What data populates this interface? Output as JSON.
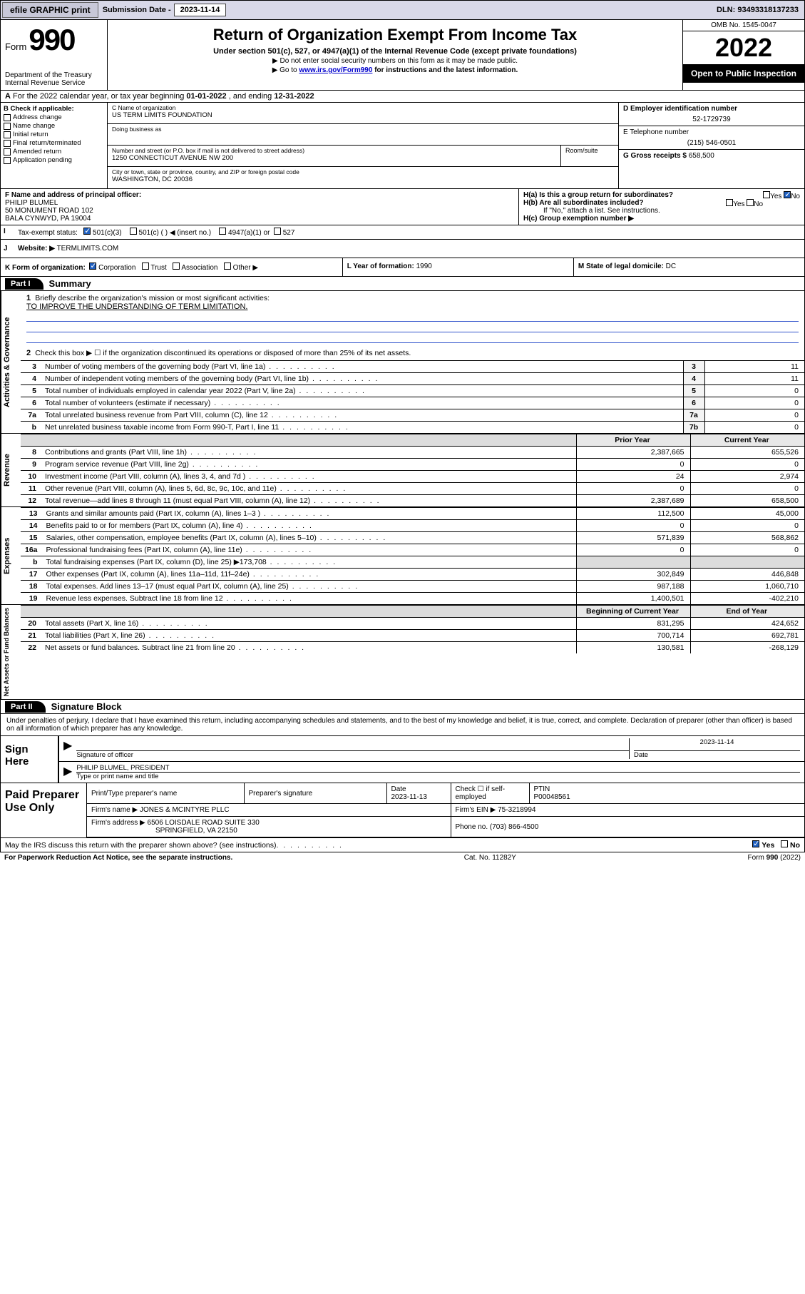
{
  "topbar": {
    "efile_btn": "efile GRAPHIC print",
    "sub_label": "Submission Date - ",
    "sub_date": "2023-11-14",
    "dln": "DLN: 93493318137233"
  },
  "header": {
    "form_word": "Form",
    "form_number": "990",
    "dept": "Department of the Treasury\nInternal Revenue Service",
    "title": "Return of Organization Exempt From Income Tax",
    "subtitle": "Under section 501(c), 527, or 4947(a)(1) of the Internal Revenue Code (except private foundations)",
    "note1": "▶ Do not enter social security numbers on this form as it may be made public.",
    "note2_pre": "▶ Go to ",
    "note2_link": "www.irs.gov/Form990",
    "note2_post": " for instructions and the latest information.",
    "omb": "OMB No. 1545-0047",
    "year": "2022",
    "open_public": "Open to Public Inspection"
  },
  "rowA": {
    "label": "A",
    "text_pre": "For the 2022 calendar year, or tax year beginning ",
    "begin": "01-01-2022",
    "mid": " , and ending ",
    "end": "12-31-2022"
  },
  "colB": {
    "label": "B Check if applicable:",
    "opts": [
      "Address change",
      "Name change",
      "Initial return",
      "Final return/terminated",
      "Amended return",
      "Application pending"
    ]
  },
  "colC": {
    "name_label": "C Name of organization",
    "name": "US TERM LIMITS FOUNDATION",
    "dba_label": "Doing business as",
    "dba": "",
    "street_label": "Number and street (or P.O. box if mail is not delivered to street address)",
    "street": "1250 CONNECTICUT AVENUE NW 200",
    "suite_label": "Room/suite",
    "city_label": "City or town, state or province, country, and ZIP or foreign postal code",
    "city": "WASHINGTON, DC  20036"
  },
  "colD": {
    "ein_label": "D Employer identification number",
    "ein": "52-1729739",
    "phone_label": "E Telephone number",
    "phone": "(215) 546-0501",
    "gross_label": "G Gross receipts $ ",
    "gross": "658,500"
  },
  "rowF": {
    "label": "F  Name and address of principal officer:",
    "name": "PHILIP BLUMEL",
    "addr1": "50 MONUMENT ROAD 102",
    "addr2": "BALA CYNWYD, PA  19004"
  },
  "rowH": {
    "ha": "H(a)  Is this a group return for subordinates?",
    "hb": "H(b)  Are all subordinates included?",
    "hb_note": "If \"No,\" attach a list. See instructions.",
    "hc": "H(c)  Group exemption number ▶",
    "yes": "Yes",
    "no": "No"
  },
  "rowI": {
    "label": "I",
    "text": "Tax-exempt status:",
    "opts": [
      "501(c)(3)",
      "501(c) (  ) ◀ (insert no.)",
      "4947(a)(1) or",
      "527"
    ]
  },
  "rowJ": {
    "label": "J",
    "text": "Website: ▶",
    "val": "TERMLIMITS.COM"
  },
  "rowK": {
    "k": "K Form of organization:",
    "k_opts": [
      "Corporation",
      "Trust",
      "Association",
      "Other ▶"
    ],
    "l": "L Year of formation: ",
    "l_val": "1990",
    "m": "M State of legal domicile: ",
    "m_val": "DC"
  },
  "part1": {
    "hdr": "Part I",
    "title": "Summary",
    "q1_label": "1",
    "q1": "Briefly describe the organization's mission or most significant activities:",
    "q1_val": "TO IMPROVE THE UNDERSTANDING OF TERM LIMITATION.",
    "q2_label": "2",
    "q2": "Check this box ▶ ☐  if the organization discontinued its operations or disposed of more than 25% of its net assets.",
    "vtab_gov": "Activities & Governance",
    "vtab_rev": "Revenue",
    "vtab_exp": "Expenses",
    "vtab_net": "Net Assets or Fund Balances",
    "rows_gov": [
      {
        "n": "3",
        "t": "Number of voting members of the governing body (Part VI, line 1a)",
        "box": "3",
        "v": "11"
      },
      {
        "n": "4",
        "t": "Number of independent voting members of the governing body (Part VI, line 1b)",
        "box": "4",
        "v": "11"
      },
      {
        "n": "5",
        "t": "Total number of individuals employed in calendar year 2022 (Part V, line 2a)",
        "box": "5",
        "v": "0"
      },
      {
        "n": "6",
        "t": "Total number of volunteers (estimate if necessary)",
        "box": "6",
        "v": "0"
      },
      {
        "n": "7a",
        "t": "Total unrelated business revenue from Part VIII, column (C), line 12",
        "box": "7a",
        "v": "0"
      },
      {
        "n": "b",
        "t": "Net unrelated business taxable income from Form 990-T, Part I, line 11",
        "box": "7b",
        "v": "0"
      }
    ],
    "hdr_prior": "Prior Year",
    "hdr_curr": "Current Year",
    "rows_rev": [
      {
        "n": "8",
        "t": "Contributions and grants (Part VIII, line 1h)",
        "p": "2,387,665",
        "c": "655,526"
      },
      {
        "n": "9",
        "t": "Program service revenue (Part VIII, line 2g)",
        "p": "0",
        "c": "0"
      },
      {
        "n": "10",
        "t": "Investment income (Part VIII, column (A), lines 3, 4, and 7d )",
        "p": "24",
        "c": "2,974"
      },
      {
        "n": "11",
        "t": "Other revenue (Part VIII, column (A), lines 5, 6d, 8c, 9c, 10c, and 11e)",
        "p": "0",
        "c": "0"
      },
      {
        "n": "12",
        "t": "Total revenue—add lines 8 through 11 (must equal Part VIII, column (A), line 12)",
        "p": "2,387,689",
        "c": "658,500"
      }
    ],
    "rows_exp": [
      {
        "n": "13",
        "t": "Grants and similar amounts paid (Part IX, column (A), lines 1–3 )",
        "p": "112,500",
        "c": "45,000"
      },
      {
        "n": "14",
        "t": "Benefits paid to or for members (Part IX, column (A), line 4)",
        "p": "0",
        "c": "0"
      },
      {
        "n": "15",
        "t": "Salaries, other compensation, employee benefits (Part IX, column (A), lines 5–10)",
        "p": "571,839",
        "c": "568,862"
      },
      {
        "n": "16a",
        "t": "Professional fundraising fees (Part IX, column (A), line 11e)",
        "p": "0",
        "c": "0"
      },
      {
        "n": "b",
        "t": "Total fundraising expenses (Part IX, column (D), line 25) ▶173,708",
        "p": "",
        "c": "",
        "gray": true
      },
      {
        "n": "17",
        "t": "Other expenses (Part IX, column (A), lines 11a–11d, 11f–24e)",
        "p": "302,849",
        "c": "446,848"
      },
      {
        "n": "18",
        "t": "Total expenses. Add lines 13–17 (must equal Part IX, column (A), line 25)",
        "p": "987,188",
        "c": "1,060,710"
      },
      {
        "n": "19",
        "t": "Revenue less expenses. Subtract line 18 from line 12",
        "p": "1,400,501",
        "c": "-402,210"
      }
    ],
    "hdr_beg": "Beginning of Current Year",
    "hdr_end": "End of Year",
    "rows_net": [
      {
        "n": "20",
        "t": "Total assets (Part X, line 16)",
        "p": "831,295",
        "c": "424,652"
      },
      {
        "n": "21",
        "t": "Total liabilities (Part X, line 26)",
        "p": "700,714",
        "c": "692,781"
      },
      {
        "n": "22",
        "t": "Net assets or fund balances. Subtract line 21 from line 20",
        "p": "130,581",
        "c": "-268,129"
      }
    ]
  },
  "part2": {
    "hdr": "Part II",
    "title": "Signature Block",
    "decl": "Under penalties of perjury, I declare that I have examined this return, including accompanying schedules and statements, and to the best of my knowledge and belief, it is true, correct, and complete. Declaration of preparer (other than officer) is based on all information of which preparer has any knowledge.",
    "sign_here": "Sign Here",
    "sig_officer": "Signature of officer",
    "sig_date_lbl": "Date",
    "sig_date": "2023-11-14",
    "officer_name": "PHILIP BLUMEL, PRESIDENT",
    "officer_sub": "Type or print name and title",
    "prep_title": "Paid Preparer Use Only",
    "prep_name_lbl": "Print/Type preparer's name",
    "prep_sig_lbl": "Preparer's signature",
    "prep_date_lbl": "Date",
    "prep_date": "2023-11-13",
    "prep_check": "Check ☐ if self-employed",
    "ptin_lbl": "PTIN",
    "ptin": "P00048561",
    "firm_name_lbl": "Firm's name    ▶",
    "firm_name": "JONES & MCINTYRE PLLC",
    "firm_ein_lbl": "Firm's EIN ▶",
    "firm_ein": "75-3218994",
    "firm_addr_lbl": "Firm's address ▶",
    "firm_addr1": "6506 LOISDALE ROAD SUITE 330",
    "firm_addr2": "SPRINGFIELD, VA  22150",
    "firm_phone_lbl": "Phone no.",
    "firm_phone": "(703) 866-4500",
    "discuss": "May the IRS discuss this return with the preparer shown above? (see instructions)",
    "yes": "Yes",
    "no": "No"
  },
  "footer": {
    "left": "For Paperwork Reduction Act Notice, see the separate instructions.",
    "mid": "Cat. No. 11282Y",
    "right": "Form 990 (2022)"
  },
  "colors": {
    "link": "#0000cc",
    "check": "#2060c0"
  }
}
